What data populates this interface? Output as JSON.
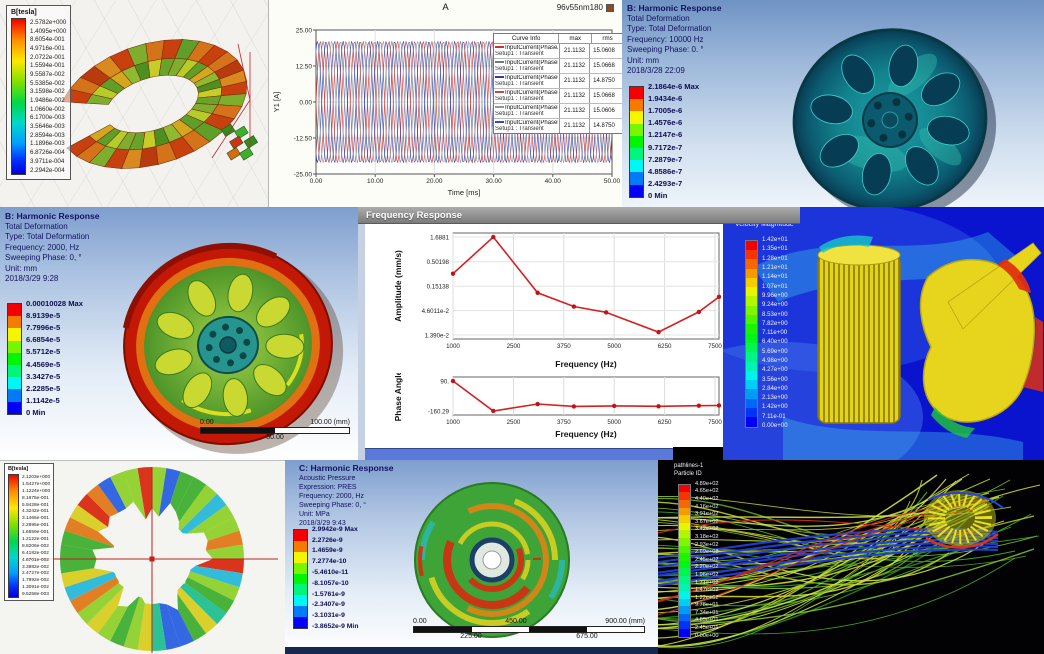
{
  "panels": {
    "torus": {
      "legend_title": "B[tesla]",
      "legend_values": [
        "2.5782e+000",
        "1.4095e+000",
        "8.6054e-001",
        "4.9716e-001",
        "2.0722e-001",
        "1.5594e-001",
        "9.5587e-002",
        "5.5385e-002",
        "3.1598e-002",
        "1.9486e-002",
        "1.0660e-002",
        "6.1700e-003",
        "3.5646e-003",
        "2.8594e-003",
        "1.1896e-003",
        "6.8726e-004",
        "3.9711e-004",
        "2.2942e-004"
      ]
    },
    "current_plot": {
      "title": "A",
      "model": "96v55nm180",
      "ylabel": "Y1 [A]",
      "xlabel": "Time [ms]",
      "yticks": [
        "25.00",
        "12.50",
        "0.00",
        "-12.50",
        "-25.00"
      ],
      "xticks": [
        "0.00",
        "10.00",
        "20.00",
        "30.00",
        "40.00",
        "50.00"
      ],
      "legend_header": {
        "curve": "Curve Info",
        "max": "max",
        "rms": "rms"
      },
      "curves": [
        {
          "name": "InputCurrent(PhaseA)",
          "setup": "Setup1 : Transient",
          "max": "21.1132",
          "rms": "15.0608",
          "color": "#d03030"
        },
        {
          "name": "InputCurrent(PhaseB)",
          "setup": "Setup1 : Transient",
          "max": "21.1132",
          "rms": "15.0668",
          "color": "#707888"
        },
        {
          "name": "InputCurrent(PhaseC)",
          "setup": "Setup1 : Transient",
          "max": "21.1132",
          "rms": "14.8750",
          "color": "#2e3e9e"
        },
        {
          "name": "InputCurrent(PhaseE)",
          "setup": "Setup1 : Transient",
          "max": "21.1132",
          "rms": "15.0668",
          "color": "#c84848"
        },
        {
          "name": "InputCurrent(PhaseD)",
          "setup": "Setup1 : Transient",
          "max": "21.1132",
          "rms": "15.0606",
          "color": "#9098a8"
        },
        {
          "name": "InputCurrent(PhaseF)",
          "setup": "Setup1 : Transient",
          "max": "21.1132",
          "rms": "14.8750",
          "color": "#3a4ab0"
        }
      ],
      "chart_data": {
        "type": "line",
        "amplitude": 21.1132,
        "period_ms": 2.9,
        "phases_deg": [
          0,
          60,
          120,
          180,
          240,
          300
        ],
        "x_range_ms": [
          0,
          50
        ],
        "y_range": [
          -25,
          25
        ]
      }
    },
    "harm_b1": {
      "title": "B: Harmonic Response",
      "lines": [
        "Total Deformation",
        "Type: Total Deformation",
        "Frequency: 10000 Hz",
        "Sweeping Phase: 0. °",
        "Unit: mm",
        "2018/3/28 22:09"
      ],
      "legend_values": [
        "2.1864e-6 Max",
        "1.9434e-6",
        "1.7005e-6",
        "1.4576e-6",
        "1.2147e-6",
        "9.7172e-7",
        "7.2879e-7",
        "4.8586e-7",
        "2.4293e-7",
        "0 Min"
      ]
    },
    "harm_b2": {
      "title": "B: Harmonic Response",
      "lines": [
        "Total Deformation",
        "Type: Total Deformation",
        "Frequency: 2000, Hz",
        "Sweeping Phase: 0, °",
        "Unit: mm",
        "2018/3/29 9:28"
      ],
      "legend_values": [
        "0.00010028 Max",
        "8.9139e-5",
        "7.7996e-5",
        "6.6854e-5",
        "5.5712e-5",
        "4.4569e-5",
        "3.3427e-5",
        "2.2285e-5",
        "1.1142e-5",
        "0 Min"
      ],
      "ruler": {
        "top": [
          "0.00",
          "100.00 (mm)"
        ],
        "bottom": [
          "50.00"
        ]
      }
    },
    "freq_response": {
      "window_title": "Frequency Response",
      "amplitude": {
        "ylabel": "Amplitude (mm/s)",
        "xlabel": "Frequency (Hz)",
        "ytick_labels": [
          "1.6881",
          "0.50198",
          "0.15138",
          "4.6011e-2",
          "1.390e-2"
        ],
        "xtick_labels": [
          "1000",
          "2500",
          "3750",
          "5000",
          "6250",
          "7500"
        ],
        "chart_data": {
          "type": "line",
          "yscale": "log",
          "x": [
            1000,
            2000,
            3100,
            4000,
            4800,
            6100,
            7100,
            7600
          ],
          "y": [
            0.28,
            1.6881,
            0.11,
            0.056,
            0.042,
            0.016,
            0.043,
            0.09
          ],
          "xlim": [
            1000,
            7600
          ]
        }
      },
      "phase": {
        "ylabel": "Phase Angle",
        "xlabel": "Frequency (Hz)",
        "ytick_labels": [
          "90.",
          "-160.29"
        ],
        "xtick_labels": [
          "1000",
          "2500",
          "3750",
          "5000",
          "6250",
          "7500"
        ],
        "chart_data": {
          "type": "line",
          "x": [
            1000,
            2000,
            3100,
            4000,
            5000,
            6100,
            7100,
            7600
          ],
          "y": [
            90,
            -160,
            -102,
            -122,
            -118,
            -121,
            -116,
            -114
          ],
          "ylim": [
            -160.29,
            90
          ]
        }
      }
    },
    "cfd": {
      "legend_title_1": "contour-2",
      "legend_title_2": "Velocity Magnitude",
      "legend_values": [
        "1.42e+01",
        "1.35e+01",
        "1.28e+01",
        "1.21e+01",
        "1.14e+01",
        "1.07e+01",
        "9.96e+00",
        "9.24e+00",
        "8.53e+00",
        "7.82e+00",
        "7.11e+00",
        "6.40e+00",
        "5.69e+00",
        "4.98e+00",
        "4.27e+00",
        "3.56e+00",
        "2.84e+00",
        "2.13e+00",
        "1.42e+00",
        "7.11e-01",
        "0.00e+00"
      ]
    },
    "ring": {
      "legend_title": "B[tesla]",
      "legend_values": [
        "2.1203e+000",
        "1.5427e+000",
        "1.1224e+000",
        "8.1675e-001",
        "5.9428e-001",
        "4.3242e-001",
        "3.1465e-001",
        "2.2895e-001",
        "1.6659e-001",
        "1.2122e-001",
        "8.8206e-002",
        "6.4182e-002",
        "4.6701e-002",
        "3.3982e-002",
        "2.4727e-002",
        "1.7992e-002",
        "1.3091e-002",
        "9.5258e-003"
      ]
    },
    "harm_c": {
      "title": "C: Harmonic Response",
      "lines": [
        "Acoustic Pressure",
        "Expression: PRES",
        "Frequency: 2000, Hz",
        "Sweeping Phase: 0, °",
        "Unit: MPa",
        "2018/3/29 9:43"
      ],
      "legend_values": [
        "2.9942e-9 Max",
        "2.2726e-9",
        "1.4659e-9",
        "7.2774e-10",
        "-5.4610e-11",
        "-8.1057e-10",
        "-1.5761e-9",
        "-2.3407e-9",
        "-3.1031e-9",
        "-3.8652e-9 Min"
      ],
      "ruler": {
        "top": [
          "0.00",
          "450.00",
          "900.00 (mm)"
        ],
        "bottom": [
          "225.00",
          "675.00"
        ]
      }
    },
    "pathlines": {
      "legend_title_1": "pathlines-1",
      "legend_title_2": "Particle ID",
      "legend_values": [
        "4.89e+02",
        "4.65e+02",
        "4.40e+02",
        "4.16e+02",
        "3.91e+02",
        "3.67e+02",
        "3.42e+02",
        "3.18e+02",
        "2.93e+02",
        "2.69e+02",
        "2.45e+02",
        "2.20e+02",
        "1.96e+02",
        "1.71e+02",
        "1.47e+02",
        "1.22e+02",
        "9.78e+01",
        "7.34e+01",
        "4.89e+01",
        "2.45e+01",
        "0.00e+00"
      ]
    }
  }
}
